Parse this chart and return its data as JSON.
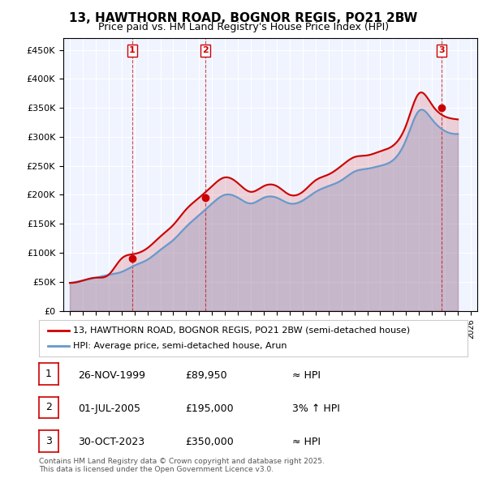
{
  "title": "13, HAWTHORN ROAD, BOGNOR REGIS, PO21 2BW",
  "subtitle": "Price paid vs. HM Land Registry's House Price Index (HPI)",
  "ylabel": "",
  "ylim": [
    0,
    470000
  ],
  "yticks": [
    0,
    50000,
    100000,
    150000,
    200000,
    250000,
    300000,
    350000,
    400000,
    450000
  ],
  "ytick_labels": [
    "£0",
    "£50K",
    "£100K",
    "£150K",
    "£200K",
    "£250K",
    "£300K",
    "£350K",
    "£400K",
    "£450K"
  ],
  "background_color": "#ffffff",
  "plot_bg_color": "#f0f4ff",
  "grid_color": "#ffffff",
  "red_color": "#cc0000",
  "blue_color": "#6699cc",
  "sale_dates": [
    "1999-11-26",
    "2005-07-01",
    "2023-10-30"
  ],
  "sale_prices": [
    89950,
    195000,
    350000
  ],
  "sale_labels": [
    "1",
    "2",
    "3"
  ],
  "legend_red": "13, HAWTHORN ROAD, BOGNOR REGIS, PO21 2BW (semi-detached house)",
  "legend_blue": "HPI: Average price, semi-detached house, Arun",
  "table_rows": [
    {
      "num": "1",
      "date": "26-NOV-1999",
      "price": "£89,950",
      "hpi": "≈ HPI"
    },
    {
      "num": "2",
      "date": "01-JUL-2005",
      "price": "£195,000",
      "hpi": "3% ↑ HPI"
    },
    {
      "num": "3",
      "date": "30-OCT-2023",
      "price": "£350,000",
      "hpi": "≈ HPI"
    }
  ],
  "footer": "Contains HM Land Registry data © Crown copyright and database right 2025.\nThis data is licensed under the Open Government Licence v3.0.",
  "hpi_years": [
    1995,
    1996,
    1997,
    1998,
    1999,
    2000,
    2001,
    2002,
    2003,
    2004,
    2005,
    2006,
    2007,
    2008,
    2009,
    2010,
    2011,
    2012,
    2013,
    2014,
    2015,
    2016,
    2017,
    2018,
    2019,
    2020,
    2021,
    2022,
    2023,
    2024,
    2025
  ],
  "hpi_values": [
    48000,
    52000,
    57000,
    62000,
    67000,
    78000,
    88000,
    105000,
    122000,
    145000,
    165000,
    185000,
    200000,
    195000,
    185000,
    195000,
    195000,
    185000,
    190000,
    205000,
    215000,
    225000,
    240000,
    245000,
    250000,
    260000,
    295000,
    345000,
    330000,
    310000,
    305000
  ],
  "red_years": [
    1995,
    1996,
    1997,
    1998,
    1999,
    2000,
    2001,
    2002,
    2003,
    2004,
    2005,
    2006,
    2007,
    2008,
    2009,
    2010,
    2011,
    2012,
    2013,
    2014,
    2015,
    2016,
    2017,
    2018,
    2019,
    2020,
    2021,
    2022,
    2023,
    2024,
    2025
  ],
  "red_values": [
    48000,
    52000,
    57000,
    62000,
    90000,
    98000,
    108000,
    128000,
    148000,
    175000,
    195000,
    215000,
    230000,
    220000,
    205000,
    215000,
    215000,
    200000,
    205000,
    225000,
    235000,
    250000,
    265000,
    268000,
    275000,
    285000,
    320000,
    375000,
    355000,
    335000,
    330000
  ]
}
